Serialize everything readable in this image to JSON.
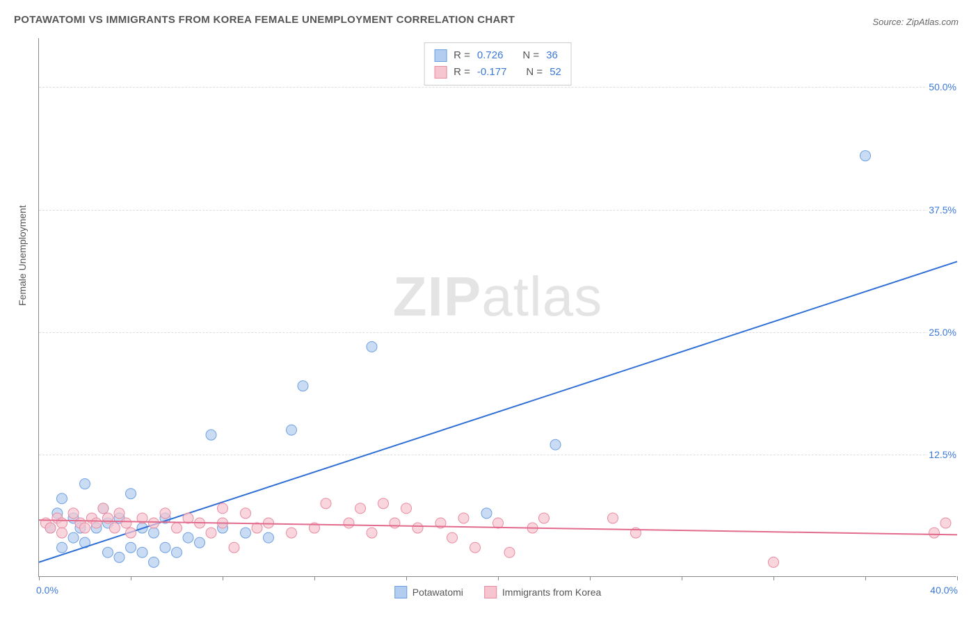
{
  "title": "POTAWATOMI VS IMMIGRANTS FROM KOREA FEMALE UNEMPLOYMENT CORRELATION CHART",
  "source": "Source: ZipAtlas.com",
  "watermark": {
    "bold": "ZIP",
    "rest": "atlas"
  },
  "y_axis_title": "Female Unemployment",
  "chart": {
    "type": "scatter",
    "xlim": [
      0,
      40
    ],
    "ylim": [
      0,
      55
    ],
    "x_tick_step": 4,
    "x_start_label": "0.0%",
    "x_end_label": "40.0%",
    "y_ticks": [
      12.5,
      25.0,
      37.5,
      50.0
    ],
    "y_tick_labels": [
      "12.5%",
      "25.0%",
      "37.5%",
      "50.0%"
    ],
    "background_color": "#ffffff",
    "grid_color": "#dddddd",
    "axis_color": "#888888",
    "label_color": "#3b78d8",
    "series": [
      {
        "name": "Potawatomi",
        "marker_fill": "#b3cdf0",
        "marker_stroke": "#6c9fe2",
        "line_color": "#2f6fd6",
        "r_value": "0.726",
        "n_value": "36",
        "regression": {
          "x1": 0,
          "y1": 1.5,
          "x2": 40,
          "y2": 32.2
        },
        "points": [
          [
            0.5,
            5.0
          ],
          [
            0.8,
            6.5
          ],
          [
            1.0,
            3.0
          ],
          [
            1.0,
            8.0
          ],
          [
            1.5,
            4.0
          ],
          [
            1.5,
            6.0
          ],
          [
            1.8,
            5.0
          ],
          [
            2.0,
            3.5
          ],
          [
            2.0,
            9.5
          ],
          [
            2.5,
            5.0
          ],
          [
            2.8,
            7.0
          ],
          [
            3.0,
            2.5
          ],
          [
            3.0,
            5.5
          ],
          [
            3.5,
            2.0
          ],
          [
            3.5,
            6.0
          ],
          [
            4.0,
            3.0
          ],
          [
            4.0,
            8.5
          ],
          [
            4.5,
            2.5
          ],
          [
            4.5,
            5.0
          ],
          [
            5.0,
            1.5
          ],
          [
            5.0,
            4.5
          ],
          [
            5.5,
            3.0
          ],
          [
            5.5,
            6.0
          ],
          [
            6.0,
            2.5
          ],
          [
            6.5,
            4.0
          ],
          [
            7.0,
            3.5
          ],
          [
            7.5,
            14.5
          ],
          [
            8.0,
            5.0
          ],
          [
            9.0,
            4.5
          ],
          [
            10.0,
            4.0
          ],
          [
            11.0,
            15.0
          ],
          [
            11.5,
            19.5
          ],
          [
            14.5,
            23.5
          ],
          [
            19.5,
            6.5
          ],
          [
            22.5,
            13.5
          ],
          [
            36.0,
            43.0
          ]
        ]
      },
      {
        "name": "Immigrants from Korea",
        "marker_fill": "#f6c5cf",
        "marker_stroke": "#e88aa0",
        "line_color": "#e26a8c",
        "r_value": "-0.177",
        "n_value": "52",
        "regression": {
          "x1": 0,
          "y1": 5.8,
          "x2": 40,
          "y2": 4.3
        },
        "points": [
          [
            0.3,
            5.5
          ],
          [
            0.5,
            5.0
          ],
          [
            0.8,
            6.0
          ],
          [
            1.0,
            5.5
          ],
          [
            1.0,
            4.5
          ],
          [
            1.5,
            6.5
          ],
          [
            1.8,
            5.5
          ],
          [
            2.0,
            5.0
          ],
          [
            2.3,
            6.0
          ],
          [
            2.5,
            5.5
          ],
          [
            2.8,
            7.0
          ],
          [
            3.0,
            6.0
          ],
          [
            3.3,
            5.0
          ],
          [
            3.5,
            6.5
          ],
          [
            3.8,
            5.5
          ],
          [
            4.0,
            4.5
          ],
          [
            4.5,
            6.0
          ],
          [
            5.0,
            5.5
          ],
          [
            5.5,
            6.5
          ],
          [
            6.0,
            5.0
          ],
          [
            6.5,
            6.0
          ],
          [
            7.0,
            5.5
          ],
          [
            7.5,
            4.5
          ],
          [
            8.0,
            5.5
          ],
          [
            8.0,
            7.0
          ],
          [
            8.5,
            3.0
          ],
          [
            9.0,
            6.5
          ],
          [
            9.5,
            5.0
          ],
          [
            10.0,
            5.5
          ],
          [
            11.0,
            4.5
          ],
          [
            12.0,
            5.0
          ],
          [
            12.5,
            7.5
          ],
          [
            13.5,
            5.5
          ],
          [
            14.0,
            7.0
          ],
          [
            14.5,
            4.5
          ],
          [
            15.0,
            7.5
          ],
          [
            15.5,
            5.5
          ],
          [
            16.0,
            7.0
          ],
          [
            16.5,
            5.0
          ],
          [
            17.5,
            5.5
          ],
          [
            18.0,
            4.0
          ],
          [
            18.5,
            6.0
          ],
          [
            19.0,
            3.0
          ],
          [
            20.0,
            5.5
          ],
          [
            20.5,
            2.5
          ],
          [
            21.5,
            5.0
          ],
          [
            22.0,
            6.0
          ],
          [
            25.0,
            6.0
          ],
          [
            26.0,
            4.5
          ],
          [
            32.0,
            1.5
          ],
          [
            39.0,
            4.5
          ],
          [
            39.5,
            5.5
          ]
        ]
      }
    ]
  },
  "legend_top": {
    "r_label": "R =",
    "n_label": "N ="
  },
  "legend_bottom": [
    {
      "label": "Potawatomi"
    },
    {
      "label": "Immigrants from Korea"
    }
  ]
}
